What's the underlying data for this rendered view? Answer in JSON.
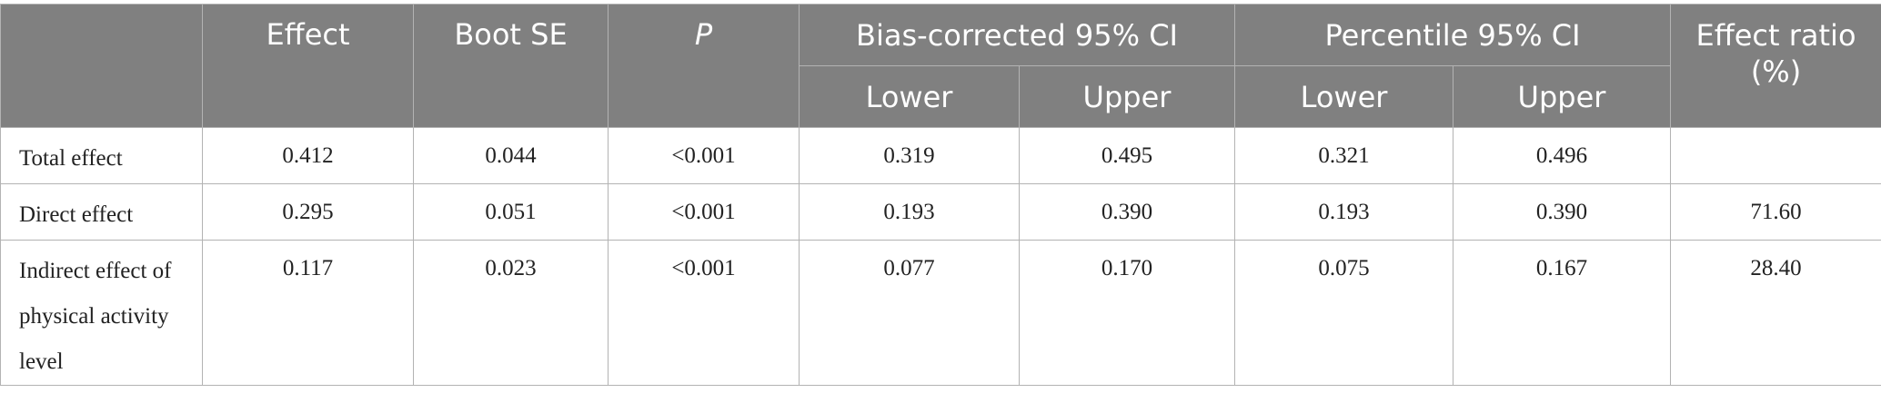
{
  "table": {
    "headers": {
      "empty": "",
      "effect": "Effect",
      "boot_se": "Boot SE",
      "p": "P",
      "bias_ci": "Bias-corrected 95% CI",
      "percentile_ci": "Percentile 95% CI",
      "effect_ratio": "Effect ratio (%)",
      "bias_lower": "Lower",
      "bias_upper": "Upper",
      "perc_lower": "Lower",
      "perc_upper": "Upper"
    },
    "rows": [
      {
        "label": "Total effect",
        "effect": "0.412",
        "boot_se": "0.044",
        "p": "<0.001",
        "bias_lower": "0.319",
        "bias_upper": "0.495",
        "perc_lower": "0.321",
        "perc_upper": "0.496",
        "ratio": ""
      },
      {
        "label": "Direct effect",
        "effect": "0.295",
        "boot_se": "0.051",
        "p": "<0.001",
        "bias_lower": "0.193",
        "bias_upper": "0.390",
        "perc_lower": "0.193",
        "perc_upper": "0.390",
        "ratio": "71.60"
      },
      {
        "label": "Indirect effect of physical activity level",
        "effect": "0.117",
        "boot_se": "0.023",
        "p": "<0.001",
        "bias_lower": "0.077",
        "bias_upper": "0.170",
        "perc_lower": "0.075",
        "perc_upper": "0.167",
        "ratio": "28.40"
      }
    ]
  },
  "colors": {
    "header_bg": "#808080",
    "header_text": "#ffffff",
    "border": "#b3b3b3"
  }
}
